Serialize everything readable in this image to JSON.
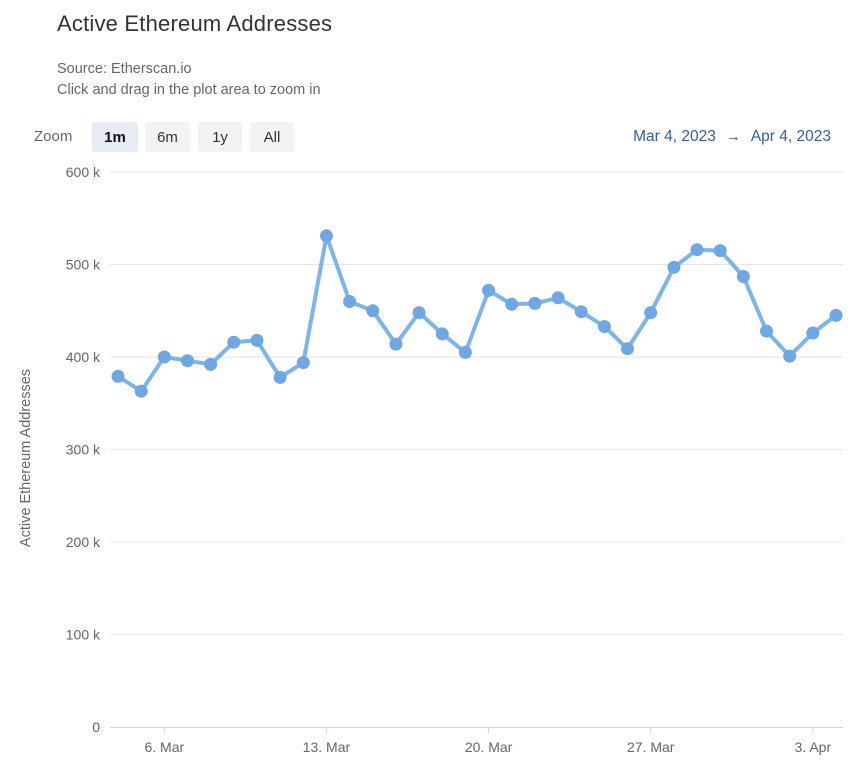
{
  "header": {
    "title": "Active Ethereum Addresses",
    "source_line": "Source: Etherscan.io",
    "hint_line": "Click and drag in the plot area to zoom in"
  },
  "zoom": {
    "label": "Zoom",
    "buttons": [
      {
        "label": "1m",
        "active": true
      },
      {
        "label": "6m",
        "active": false
      },
      {
        "label": "1y",
        "active": false
      },
      {
        "label": "All",
        "active": false
      }
    ]
  },
  "range": {
    "from": "Mar 4, 2023",
    "arrow": "→",
    "to": "Apr 4, 2023"
  },
  "chart_data": {
    "type": "line",
    "title": "Active Ethereum Addresses",
    "xlabel": "",
    "ylabel": "Active Ethereum Addresses",
    "unit": "addresses",
    "x": [
      "Mar 4",
      "Mar 5",
      "Mar 6",
      "Mar 7",
      "Mar 8",
      "Mar 9",
      "Mar 10",
      "Mar 11",
      "Mar 12",
      "Mar 13",
      "Mar 14",
      "Mar 15",
      "Mar 16",
      "Mar 17",
      "Mar 18",
      "Mar 19",
      "Mar 20",
      "Mar 21",
      "Mar 22",
      "Mar 23",
      "Mar 24",
      "Mar 25",
      "Mar 26",
      "Mar 27",
      "Mar 28",
      "Mar 29",
      "Mar 30",
      "Mar 31",
      "Apr 1",
      "Apr 2",
      "Apr 3",
      "Apr 4"
    ],
    "values_k": [
      379,
      363,
      400,
      396,
      392,
      416,
      418,
      378,
      394,
      531,
      460,
      450,
      414,
      448,
      425,
      405,
      472,
      457,
      458,
      464,
      449,
      433,
      409,
      448,
      497,
      516,
      515,
      487,
      428,
      401,
      426,
      445
    ],
    "ylim_k": [
      0,
      600
    ],
    "ytick_values_k": [
      0,
      100,
      200,
      300,
      400,
      500,
      600
    ],
    "ytick_labels": [
      "0",
      "100 k",
      "200 k",
      "300 k",
      "400 k",
      "500 k",
      "600 k"
    ],
    "xtick_indices": [
      2,
      9,
      16,
      23,
      30
    ],
    "xtick_labels": [
      "6. Mar",
      "13. Mar",
      "20. Mar",
      "27. Mar",
      "3. Apr"
    ],
    "grid": "horizontal",
    "legend": "none",
    "colors": {
      "line": "#7cb5ec",
      "marker": "#6ea7e2",
      "grid": "#e6e6e6",
      "axis_line": "#ccd6eb",
      "axis_text": "#666666",
      "title_text": "#333333",
      "date_link": "#335cad",
      "selected_button_bg": "#e6ebf5",
      "button_bg": "#f3f3f5"
    }
  }
}
